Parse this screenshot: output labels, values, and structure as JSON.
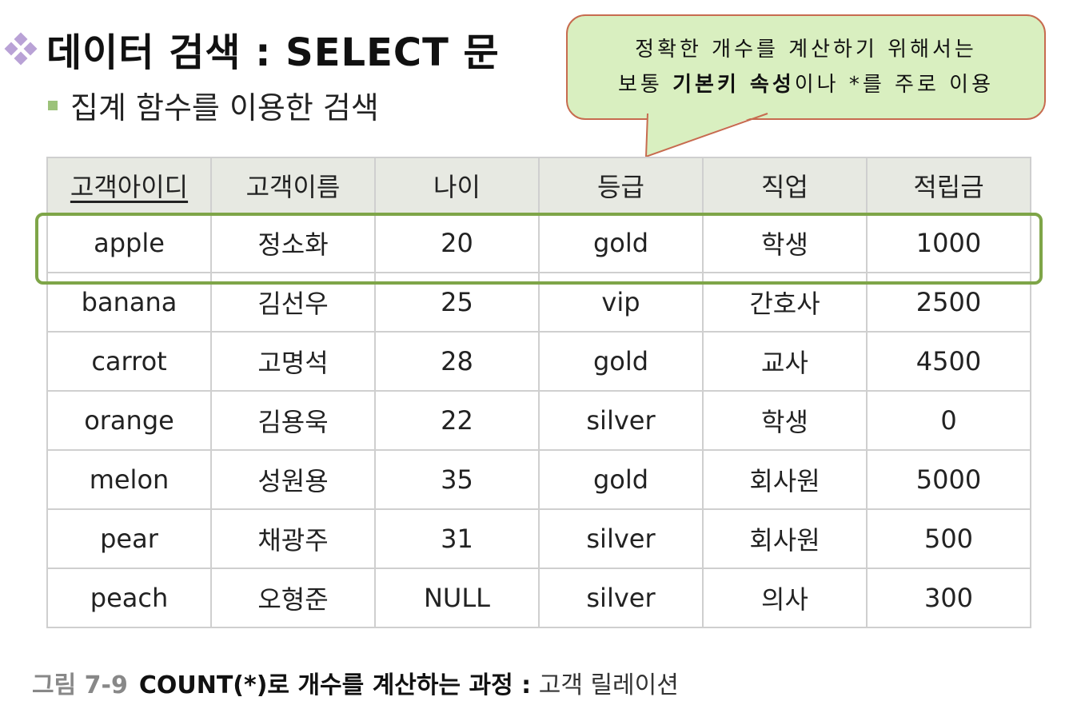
{
  "title": "데이터 검색 : SELECT 문",
  "subtitle": "집계 함수를 이용한 검색",
  "callout": {
    "line1": "정확한 개수를 계산하기 위해서는",
    "line2_prefix": "보통 ",
    "line2_bold": "기본키 속성",
    "line2_suffix": "이나 *를 주로 이용"
  },
  "table": {
    "headers": [
      "고객아이디",
      "고객이름",
      "나이",
      "등급",
      "직업",
      "적립금"
    ],
    "rows": [
      [
        "apple",
        "정소화",
        "20",
        "gold",
        "학생",
        "1000"
      ],
      [
        "banana",
        "김선우",
        "25",
        "vip",
        "간호사",
        "2500"
      ],
      [
        "carrot",
        "고명석",
        "28",
        "gold",
        "교사",
        "4500"
      ],
      [
        "orange",
        "김용욱",
        "22",
        "silver",
        "학생",
        "0"
      ],
      [
        "melon",
        "성원용",
        "35",
        "gold",
        "회사원",
        "5000"
      ],
      [
        "pear",
        "채광주",
        "31",
        "silver",
        "회사원",
        "500"
      ],
      [
        "peach",
        "오형준",
        "NULL",
        "silver",
        "의사",
        "300"
      ]
    ]
  },
  "caption": {
    "number": "그림 7-9",
    "bold": "COUNT(*)로 개수를 계산하는 과정 :",
    "rest": " 고객 릴레이션"
  },
  "colors": {
    "callout_fill": "#d9efc0",
    "callout_border": "#c76b4f",
    "highlight": "#7ea548",
    "header_bg": "#e7e9e2",
    "bullet": "#b9a2d6"
  }
}
